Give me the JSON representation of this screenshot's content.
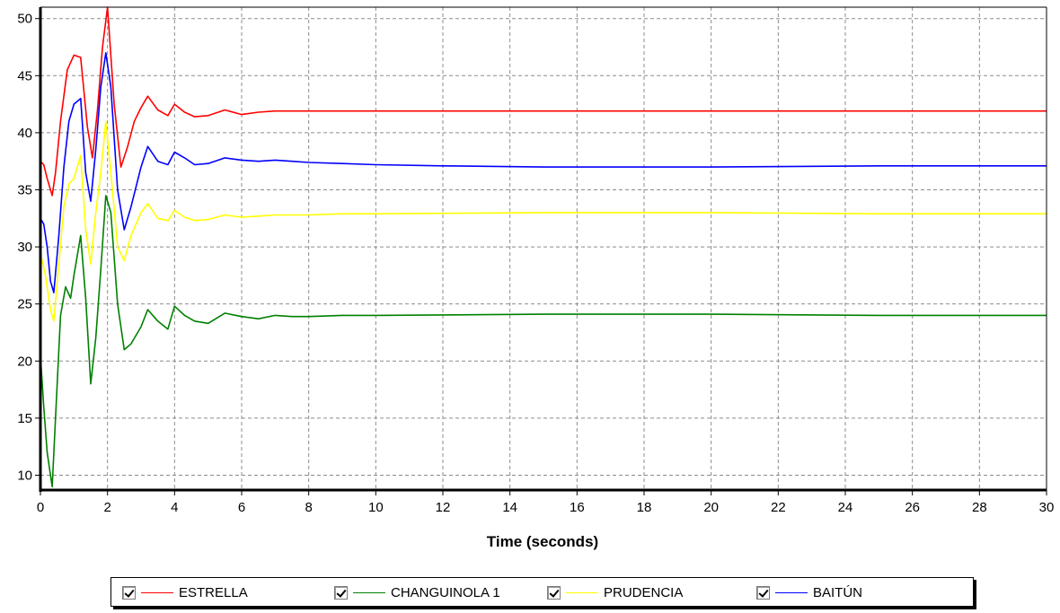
{
  "chart_data": {
    "type": "line",
    "title": "",
    "xlabel": "Time (seconds)",
    "ylabel": "",
    "xlim": [
      0,
      30
    ],
    "ylim": [
      8.7,
      51
    ],
    "xticks": [
      0,
      2,
      4,
      6,
      8,
      10,
      12,
      14,
      16,
      18,
      20,
      22,
      24,
      26,
      28,
      30
    ],
    "yticks": [
      10,
      15,
      20,
      25,
      30,
      35,
      40,
      45,
      50
    ],
    "grid": true,
    "legend_position": "bottom",
    "series": [
      {
        "name": "ESTRELLA",
        "color": "#ff0000",
        "x": [
          0,
          0.1,
          0.2,
          0.35,
          0.45,
          0.6,
          0.8,
          1.0,
          1.2,
          1.4,
          1.55,
          1.7,
          1.85,
          2.0,
          2.2,
          2.4,
          2.6,
          2.8,
          3.0,
          3.2,
          3.5,
          3.8,
          4.0,
          4.3,
          4.6,
          5.0,
          5.5,
          6.0,
          6.5,
          7.0,
          7.5,
          8.0,
          9.0,
          10,
          15,
          20,
          25,
          30
        ],
        "y": [
          37.5,
          37.2,
          36.0,
          34.5,
          36.5,
          41.0,
          45.5,
          46.8,
          46.6,
          40.5,
          37.8,
          42.0,
          47.5,
          51.0,
          42.5,
          37.0,
          38.8,
          41.0,
          42.2,
          43.2,
          42.0,
          41.5,
          42.5,
          41.8,
          41.4,
          41.5,
          42.0,
          41.6,
          41.8,
          41.9,
          41.9,
          41.9,
          41.9,
          41.9,
          41.9,
          41.9,
          41.9,
          41.9
        ]
      },
      {
        "name": "CHANGUINOLA 1",
        "color": "#008000",
        "x": [
          0,
          0.1,
          0.2,
          0.3,
          0.35,
          0.45,
          0.6,
          0.75,
          0.9,
          1.0,
          1.2,
          1.35,
          1.5,
          1.65,
          1.8,
          1.95,
          2.1,
          2.3,
          2.5,
          2.7,
          3.0,
          3.2,
          3.5,
          3.8,
          4.0,
          4.3,
          4.6,
          5.0,
          5.5,
          6.0,
          6.5,
          7.0,
          7.5,
          8.0,
          9.0,
          10,
          15,
          20,
          25,
          30
        ],
        "y": [
          20.5,
          16.0,
          12.0,
          10.0,
          9.0,
          15.0,
          24.0,
          26.5,
          25.5,
          27.5,
          31.0,
          25.5,
          18.0,
          22.0,
          28.0,
          34.5,
          33.0,
          25.0,
          21.0,
          21.5,
          23.0,
          24.5,
          23.5,
          22.8,
          24.8,
          24.0,
          23.5,
          23.3,
          24.2,
          23.9,
          23.7,
          24.0,
          23.9,
          23.9,
          24.0,
          24.0,
          24.1,
          24.1,
          24.0,
          24.0
        ]
      },
      {
        "name": "PRUDENCIA",
        "color": "#ffff00",
        "x": [
          0,
          0.15,
          0.3,
          0.4,
          0.55,
          0.7,
          0.85,
          1.0,
          1.2,
          1.35,
          1.5,
          1.65,
          1.8,
          1.95,
          2.1,
          2.3,
          2.5,
          2.7,
          3.0,
          3.2,
          3.5,
          3.8,
          4.0,
          4.3,
          4.6,
          5.0,
          5.5,
          6.0,
          6.5,
          7.0,
          8.0,
          9.0,
          10,
          15,
          20,
          25,
          30
        ],
        "y": [
          29.5,
          27.5,
          24.5,
          23.5,
          28.5,
          33.5,
          35.5,
          36.0,
          38.0,
          31.5,
          28.5,
          33.0,
          36.5,
          41.0,
          36.5,
          30.0,
          28.8,
          31.0,
          33.0,
          33.8,
          32.5,
          32.3,
          33.2,
          32.6,
          32.3,
          32.4,
          32.8,
          32.6,
          32.7,
          32.8,
          32.8,
          32.9,
          32.9,
          33.0,
          33.0,
          32.9,
          32.9
        ]
      },
      {
        "name": "BAITÚN",
        "color": "#0000ff",
        "x": [
          0,
          0.1,
          0.2,
          0.3,
          0.4,
          0.55,
          0.7,
          0.85,
          1.0,
          1.2,
          1.35,
          1.5,
          1.65,
          1.8,
          1.95,
          2.1,
          2.3,
          2.5,
          2.7,
          3.0,
          3.2,
          3.5,
          3.8,
          4.0,
          4.3,
          4.6,
          5.0,
          5.5,
          6.0,
          6.5,
          7.0,
          7.5,
          8.0,
          9.0,
          10,
          12,
          15,
          20,
          25,
          30
        ],
        "y": [
          32.5,
          32.0,
          30.0,
          27.0,
          26.0,
          31.0,
          37.0,
          41.0,
          42.5,
          43.0,
          36.5,
          34.0,
          38.5,
          44.0,
          47.0,
          44.0,
          35.0,
          31.5,
          33.5,
          37.0,
          38.8,
          37.5,
          37.2,
          38.3,
          37.8,
          37.2,
          37.3,
          37.8,
          37.6,
          37.5,
          37.6,
          37.5,
          37.4,
          37.3,
          37.2,
          37.1,
          37.0,
          37.0,
          37.1,
          37.1
        ]
      }
    ]
  },
  "legend": {
    "items": [
      {
        "label": "ESTRELLA",
        "checked": true,
        "color": "#ff0000"
      },
      {
        "label": "CHANGUINOLA 1",
        "checked": true,
        "color": "#008000"
      },
      {
        "label": "PRUDENCIA",
        "checked": true,
        "color": "#ffff00"
      },
      {
        "label": "BAITÚN",
        "checked": true,
        "color": "#0000ff"
      }
    ]
  }
}
